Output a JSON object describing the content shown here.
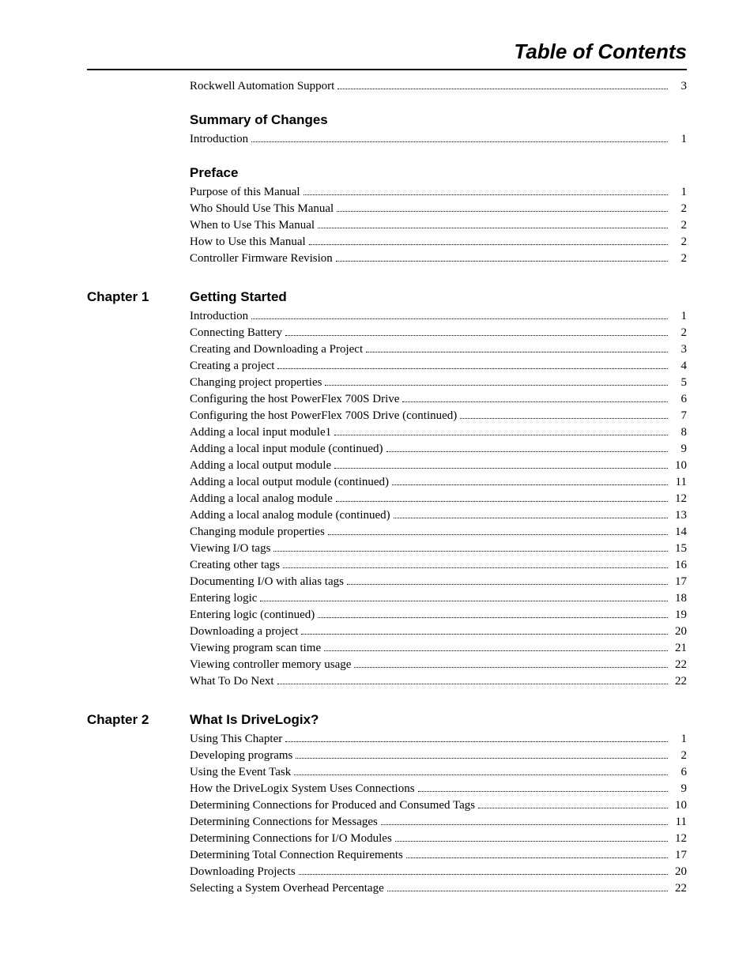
{
  "title": "Table of Contents",
  "topEntries": [
    {
      "label": "Rockwell Automation Support",
      "page": "3"
    }
  ],
  "sections": [
    {
      "heading": "Summary of Changes",
      "entries": [
        {
          "label": "Introduction",
          "page": "1"
        }
      ]
    },
    {
      "heading": "Preface",
      "entries": [
        {
          "label": "Purpose of this Manual",
          "page": "1"
        },
        {
          "label": "Who Should Use This Manual",
          "page": "2"
        },
        {
          "label": "When to Use This Manual",
          "page": "2"
        },
        {
          "label": "How to Use this Manual",
          "page": "2"
        },
        {
          "label": "Controller Firmware Revision",
          "page": "2"
        }
      ]
    }
  ],
  "chapters": [
    {
      "label": "Chapter 1",
      "heading": "Getting Started",
      "entries": [
        {
          "label": "Introduction",
          "page": "1"
        },
        {
          "label": "Connecting Battery",
          "page": "2"
        },
        {
          "label": "Creating and Downloading a Project",
          "page": "3"
        },
        {
          "label": "Creating a project",
          "page": "4"
        },
        {
          "label": "Changing project properties",
          "page": "5"
        },
        {
          "label": "Configuring the host PowerFlex 700S Drive",
          "page": "6"
        },
        {
          "label": "Configuring the host PowerFlex 700S Drive (continued)",
          "page": "7"
        },
        {
          "label": "Adding a local input module1",
          "page": "8"
        },
        {
          "label": "Adding a local input module (continued)",
          "page": "9"
        },
        {
          "label": "Adding a local output module",
          "page": "10"
        },
        {
          "label": "Adding a local output module (continued)",
          "page": "11"
        },
        {
          "label": "Adding a local analog module",
          "page": "12"
        },
        {
          "label": "Adding a local analog module (continued)",
          "page": "13"
        },
        {
          "label": "Changing module properties",
          "page": "14"
        },
        {
          "label": "Viewing I/O tags",
          "page": "15"
        },
        {
          "label": "Creating other tags",
          "page": "16"
        },
        {
          "label": "Documenting I/O with alias tags",
          "page": "17"
        },
        {
          "label": "Entering logic",
          "page": "18"
        },
        {
          "label": "Entering logic (continued)",
          "page": "19"
        },
        {
          "label": "Downloading a project",
          "page": "20"
        },
        {
          "label": "Viewing program scan time",
          "page": "21"
        },
        {
          "label": "Viewing controller memory usage",
          "page": "22"
        },
        {
          "label": "What To Do Next",
          "page": "22"
        }
      ]
    },
    {
      "label": "Chapter 2",
      "heading": "What Is DriveLogix?",
      "entries": [
        {
          "label": "Using This Chapter",
          "page": "1"
        },
        {
          "label": "Developing programs",
          "page": "2"
        },
        {
          "label": "Using the Event Task",
          "page": "6"
        },
        {
          "label": "How the DriveLogix System Uses Connections",
          "page": "9"
        },
        {
          "label": "Determining Connections for Produced and Consumed Tags",
          "page": "10"
        },
        {
          "label": "Determining Connections for Messages",
          "page": "11"
        },
        {
          "label": "Determining  Connections for I/O Modules",
          "page": "12"
        },
        {
          "label": "Determining Total Connection Requirements",
          "page": "17"
        },
        {
          "label": "Downloading Projects",
          "page": "20"
        },
        {
          "label": "Selecting a System Overhead Percentage",
          "page": "22"
        }
      ]
    }
  ]
}
